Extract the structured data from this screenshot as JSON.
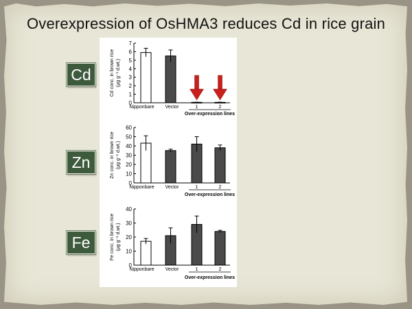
{
  "slide": {
    "title": "Overexpression of OsHMA3 reduces Cd in rice grain",
    "colors": {
      "background": "#e8e6d6",
      "badge": "#3e5a3c",
      "open_bar": "#ffffff",
      "filled_bar": "#4a4a4a",
      "arrow": "#c8201c"
    }
  },
  "badges": [
    "Cd",
    "Zn",
    "Fe"
  ],
  "chart_data": [
    {
      "type": "bar",
      "ylabel_lines": [
        "Cd conc. in brown rice",
        "(μg g⁻¹ d.wt.)"
      ],
      "categories": [
        "Nipponbare",
        "Vector",
        "1",
        "2"
      ],
      "group_label": "Over-expression lines",
      "values": [
        5.9,
        5.5,
        0.05,
        0.05
      ],
      "errors": [
        0.5,
        0.7,
        0.02,
        0.02
      ],
      "ylim": [
        0,
        7
      ],
      "yticks": [
        0,
        1,
        2,
        3,
        4,
        5,
        6,
        7
      ],
      "arrows_on": [
        "1",
        "2"
      ]
    },
    {
      "type": "bar",
      "ylabel_lines": [
        "Zn conc. in brown rice",
        "(μg g⁻¹ d.wt.)"
      ],
      "categories": [
        "Nipponbare",
        "Vector",
        "1",
        "2"
      ],
      "group_label": "Over-expression lines",
      "values": [
        43,
        35,
        42,
        38
      ],
      "errors": [
        8,
        1.5,
        8,
        3
      ],
      "ylim": [
        0,
        60
      ],
      "yticks": [
        0,
        10,
        20,
        30,
        40,
        50,
        60
      ],
      "arrows_on": []
    },
    {
      "type": "bar",
      "ylabel_lines": [
        "Fe conc. in brown rice",
        "(μg g⁻¹ d.wt.)"
      ],
      "categories": [
        "Nipponbare",
        "Vector",
        "1",
        "2"
      ],
      "group_label": "Over-expression lines",
      "values": [
        17,
        21,
        29,
        24
      ],
      "errors": [
        2,
        5.5,
        6,
        0.8
      ],
      "ylim": [
        0,
        40
      ],
      "yticks": [
        0,
        10,
        20,
        30,
        40
      ],
      "arrows_on": []
    }
  ]
}
